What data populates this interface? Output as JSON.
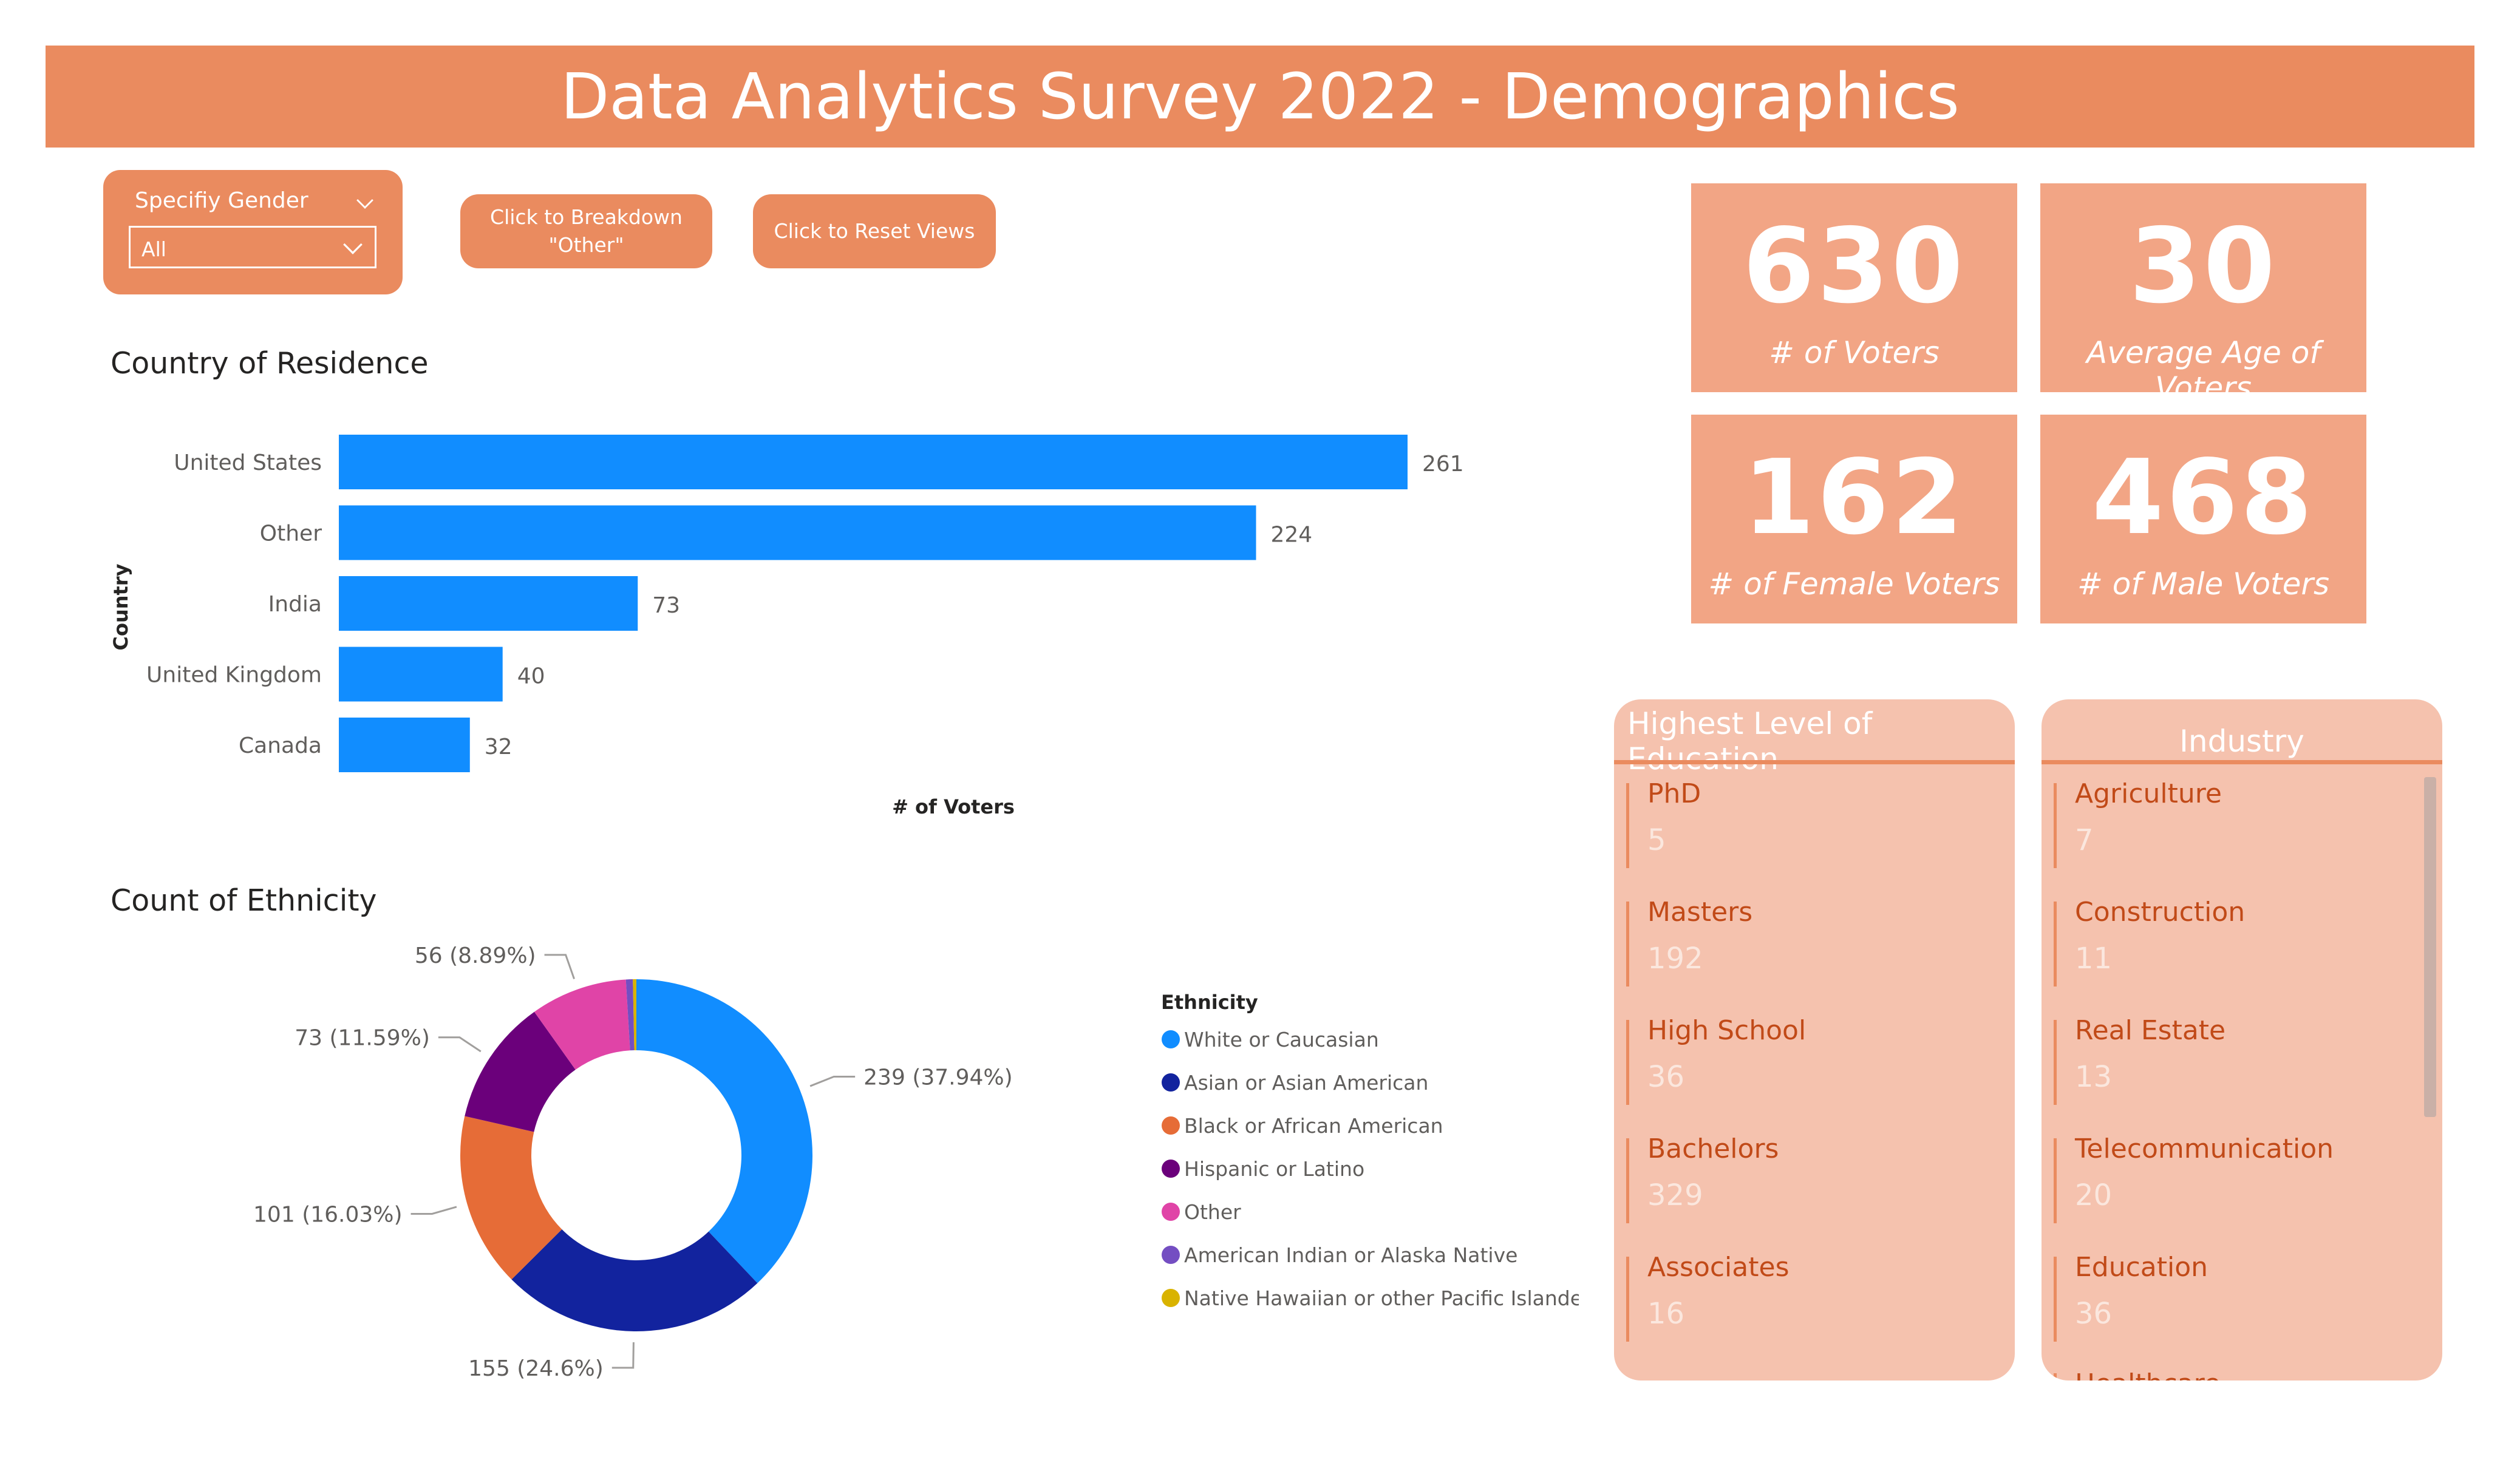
{
  "header": {
    "title": "Data Analytics Survey 2022 - Demographics"
  },
  "slicer": {
    "label": "Specifiy Gender",
    "value": "All"
  },
  "buttons": {
    "breakdown": "Click to Breakdown\n\"Other\"",
    "reset": "Click to Reset Views"
  },
  "colors": {
    "accent": "#ea8b5f",
    "kpi_bg": "#f2a585",
    "card_bg": "#f5c2ae",
    "bar": "#118dff"
  },
  "kpis": [
    {
      "value": "630",
      "label": "# of Voters"
    },
    {
      "value": "30",
      "label": "Average Age of Voters"
    },
    {
      "value": "162",
      "label": "# of Female Voters"
    },
    {
      "value": "468",
      "label": "# of Male Voters"
    }
  ],
  "education_card": {
    "title": "Highest Level of Education",
    "items": [
      {
        "name": "PhD",
        "value": "5"
      },
      {
        "name": "Masters",
        "value": "192"
      },
      {
        "name": "High School",
        "value": "36"
      },
      {
        "name": "Bachelors",
        "value": "329"
      },
      {
        "name": "Associates",
        "value": "16"
      }
    ]
  },
  "industry_card": {
    "title": "Industry",
    "items": [
      {
        "name": "Agriculture",
        "value": "7"
      },
      {
        "name": "Construction",
        "value": "11"
      },
      {
        "name": "Real Estate",
        "value": "13"
      },
      {
        "name": "Telecommunication",
        "value": "20"
      },
      {
        "name": "Education",
        "value": "36"
      },
      {
        "name": "Healthcare",
        "value": ""
      }
    ]
  },
  "chart_data": [
    {
      "type": "bar",
      "orientation": "horizontal",
      "title": "Country of Residence",
      "xlabel": "# of Voters",
      "ylabel": "Country",
      "categories": [
        "United States",
        "Other",
        "India",
        "United Kingdom",
        "Canada"
      ],
      "values": [
        261,
        224,
        73,
        40,
        32
      ],
      "color": "#118dff"
    },
    {
      "type": "pie",
      "style": "donut",
      "title": "Count of Ethnicity",
      "legend_title": "Ethnicity",
      "legend_position": "right",
      "slices": [
        {
          "label": "White or Caucasian",
          "value": 239,
          "pct": "37.94%",
          "color": "#118dff",
          "data_label": "239 (37.94%)"
        },
        {
          "label": "Asian or Asian American",
          "value": 155,
          "pct": "24.6%",
          "color": "#12239e",
          "data_label": "155 (24.6%)"
        },
        {
          "label": "Black or African American",
          "value": 101,
          "pct": "16.03%",
          "color": "#e66c37",
          "data_label": "101 (16.03%)"
        },
        {
          "label": "Hispanic or Latino",
          "value": 73,
          "pct": "11.59%",
          "color": "#6b007b",
          "data_label": "73 (11.59%)"
        },
        {
          "label": "Other",
          "value": 56,
          "pct": "8.89%",
          "color": "#e044a7",
          "data_label": "56 (8.89%)"
        },
        {
          "label": "American Indian or Alaska Native",
          "value": 4,
          "pct": "",
          "color": "#744ec2",
          "data_label": ""
        },
        {
          "label": "Native Hawaiian or other Pacific Islander",
          "value": 2,
          "pct": "",
          "color": "#d9b300",
          "data_label": ""
        }
      ]
    }
  ]
}
